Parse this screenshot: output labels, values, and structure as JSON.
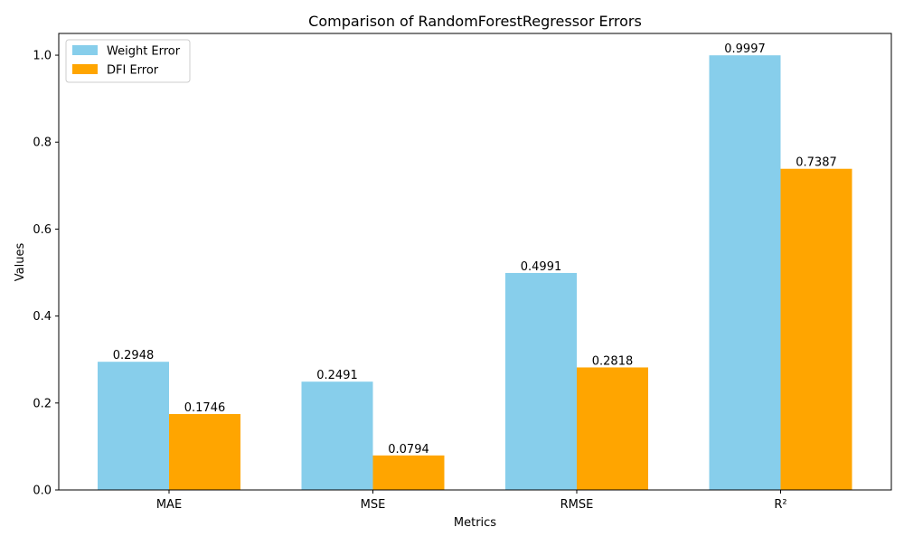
{
  "chart_data": {
    "type": "bar",
    "title": "Comparison of RandomForestRegressor Errors",
    "xlabel": "Metrics",
    "ylabel": "Values",
    "categories": [
      "MAE",
      "MSE",
      "RMSE",
      "R²"
    ],
    "series": [
      {
        "name": "Weight Error",
        "color": "#87CEEB",
        "values": [
          0.2948,
          0.2491,
          0.4991,
          0.9997
        ]
      },
      {
        "name": "DFI Error",
        "color": "#FFA500",
        "values": [
          0.1746,
          0.0794,
          0.2818,
          0.7387
        ]
      }
    ],
    "ylim": [
      0,
      1.05
    ],
    "yticks": [
      0.0,
      0.2,
      0.4,
      0.6,
      0.8,
      1.0
    ],
    "ytick_labels": [
      "0.0",
      "0.2",
      "0.4",
      "0.6",
      "0.8",
      "1.0"
    ],
    "data_labels": [
      [
        "0.2948",
        "0.2491",
        "0.4991",
        "0.9997"
      ],
      [
        "0.1746",
        "0.0794",
        "0.2818",
        "0.7387"
      ]
    ],
    "legend_position": "top-left",
    "grid": false
  }
}
